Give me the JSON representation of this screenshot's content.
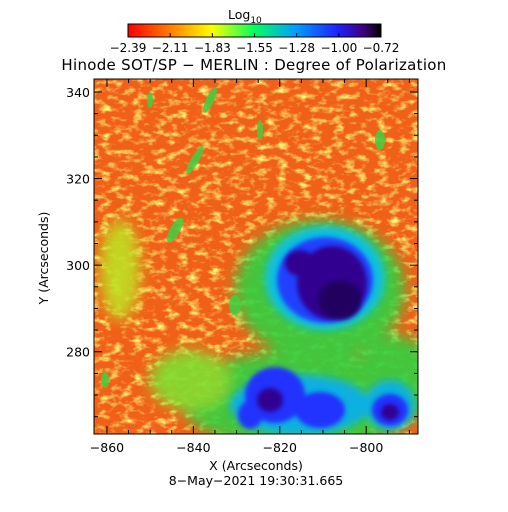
{
  "colorbar": {
    "label_base": "Log",
    "label_sub": "10",
    "ticks": [
      "−2.39",
      "−2.11",
      "−1.83",
      "−1.55",
      "−1.28",
      "−1.00",
      "−0.72"
    ],
    "range": [
      -2.39,
      -0.72
    ]
  },
  "title": "Hinode SOT/SP − MERLIN : Degree of Polarization",
  "axes": {
    "xlabel": "X (Arcseconds)",
    "ylabel": "Y (Arcseconds)",
    "xticks": [
      -860,
      -840,
      -820,
      -800
    ],
    "yticks": [
      280,
      300,
      320,
      340
    ],
    "xlim": [
      -863,
      -788
    ],
    "ylim": [
      261,
      343
    ]
  },
  "timestamp": "8−May−2021 19:30:31.665"
}
